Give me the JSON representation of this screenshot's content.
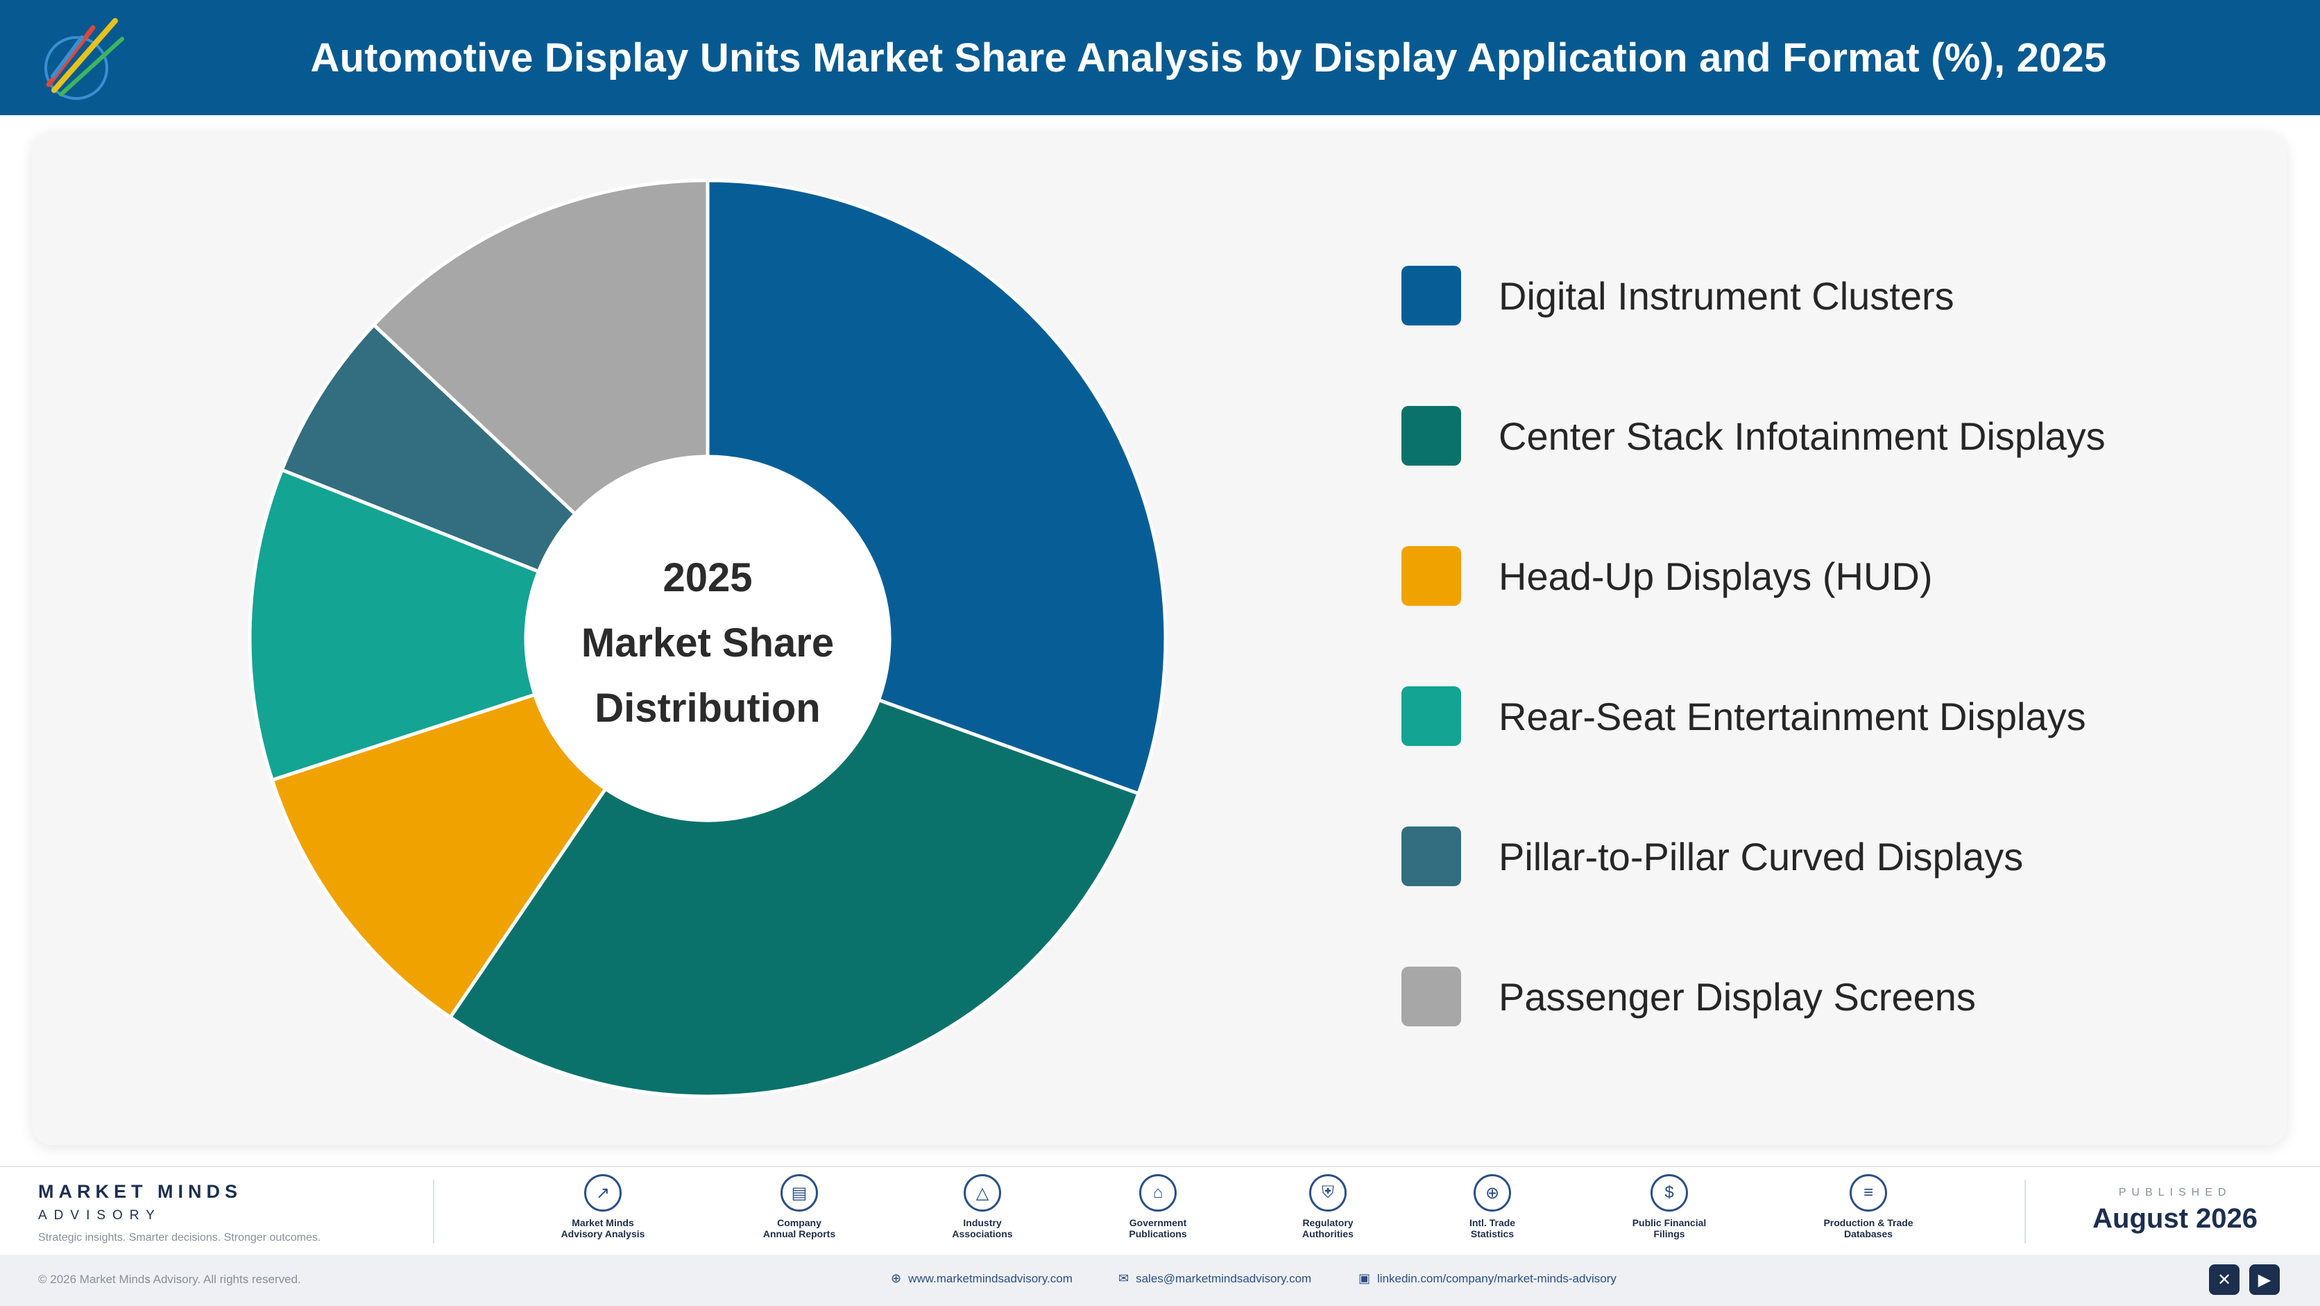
{
  "header": {
    "title": "Automotive Display Units Market Share Analysis by Display Application and Format (%), 2025"
  },
  "chart_data": {
    "type": "pie",
    "variant": "donut",
    "center_label": [
      "2025",
      "Market Share",
      "Distribution"
    ],
    "categories": [
      "Digital Instrument Clusters",
      "Center Stack Infotainment Displays",
      "Head-Up Displays (HUD)",
      "Rear-Seat Entertainment Displays",
      "Pillar-to-Pillar Curved Displays",
      "Passenger Display Screens"
    ],
    "values": [
      30.5,
      29,
      10.5,
      11,
      6,
      13
    ],
    "colors": [
      "#075e96",
      "#0b726b",
      "#f0a200",
      "#13a493",
      "#326e80",
      "#a7a7a7"
    ],
    "legend_position": "right"
  },
  "footer": {
    "brand_name": "MARKET MINDS",
    "brand_sub": "ADVISORY",
    "brand_tagline": "Strategic insights. Smarter decisions. Stronger outcomes.",
    "sources": [
      {
        "label": "Market Minds\nAdvisory Analysis",
        "icon": "trend-icon"
      },
      {
        "label": "Company\nAnnual Reports",
        "icon": "document-icon"
      },
      {
        "label": "Industry\nAssociations",
        "icon": "network-icon"
      },
      {
        "label": "Government\nPublications",
        "icon": "government-icon"
      },
      {
        "label": "Regulatory\nAuthorities",
        "icon": "shield-icon"
      },
      {
        "label": "Intl. Trade\nStatistics",
        "icon": "globe-icon"
      },
      {
        "label": "Public Financial\nFilings",
        "icon": "dollar-icon"
      },
      {
        "label": "Production & Trade\nDatabases",
        "icon": "database-icon"
      }
    ],
    "published_label": "PUBLISHED",
    "published_date": "August 2026",
    "copyright": "© 2026 Market Minds Advisory. All rights reserved.",
    "website": "www.marketmindsadvisory.com",
    "email": "sales@marketmindsadvisory.com",
    "linkedin": "linkedin.com/company/market-minds-advisory"
  }
}
